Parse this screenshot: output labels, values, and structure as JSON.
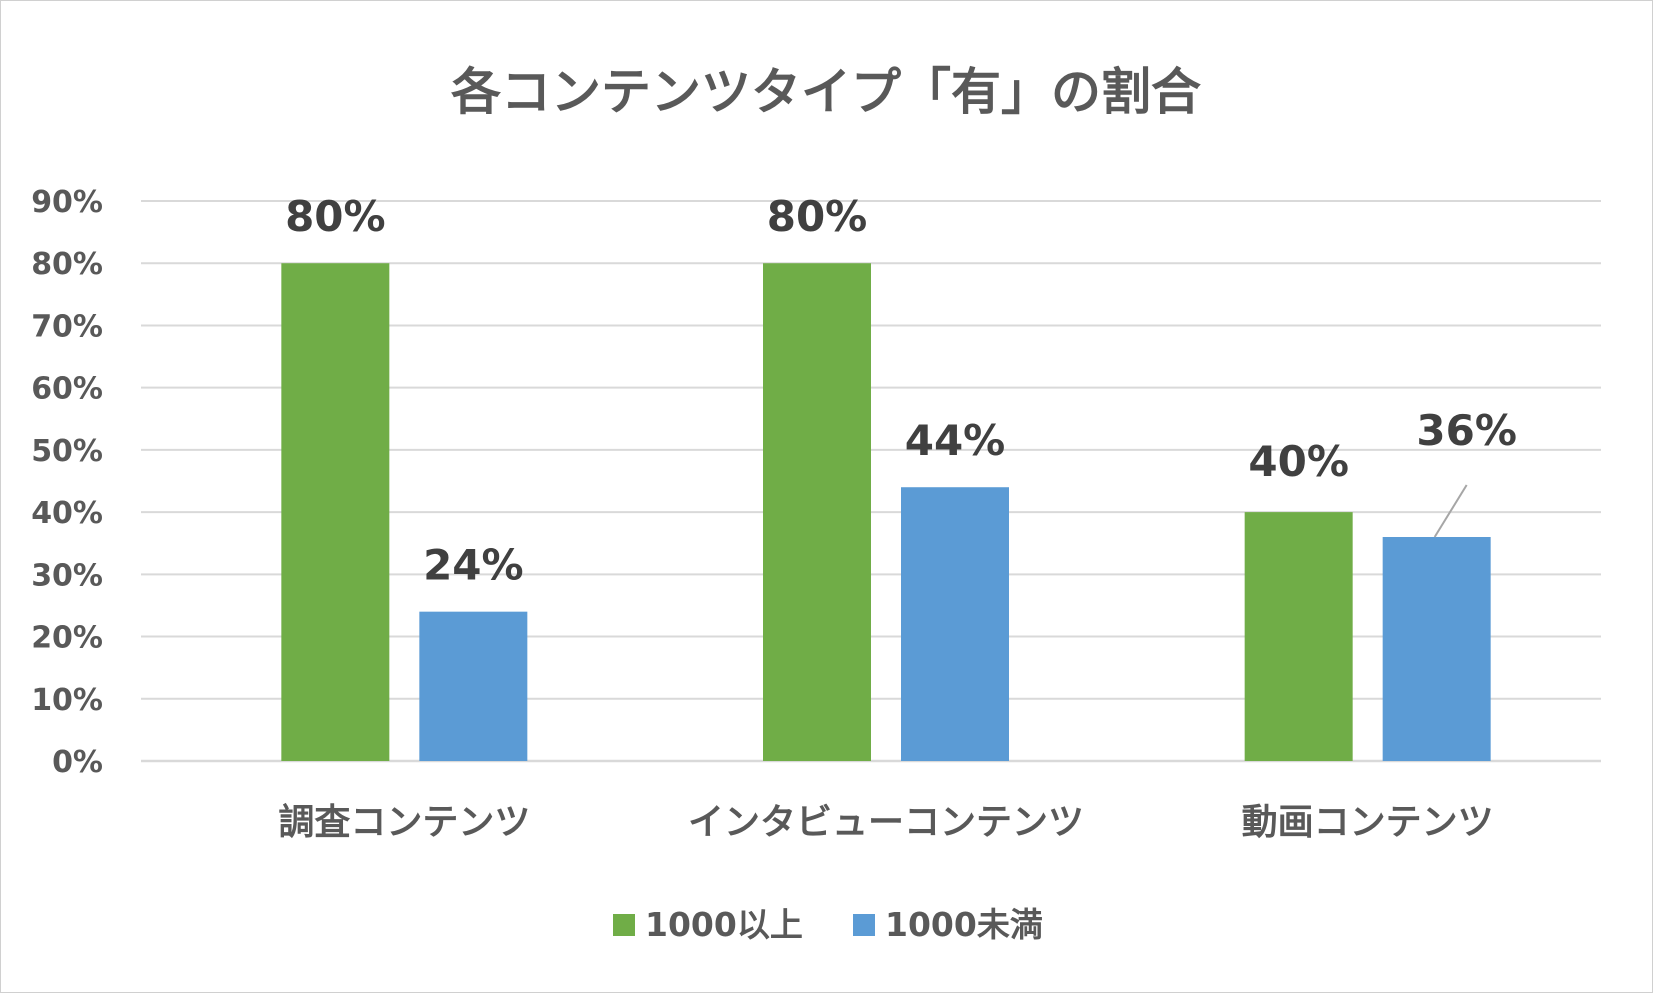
{
  "chart_data": {
    "type": "bar",
    "title": "各コンテンツタイプ「有」の割合",
    "categories": [
      "調査コンテンツ",
      "インタビューコンテンツ",
      "動画コンテンツ"
    ],
    "series": [
      {
        "name": "1000以上",
        "color": "#70ad47",
        "values": [
          80,
          80,
          40
        ],
        "labels": [
          "80%",
          "80%",
          "40%"
        ]
      },
      {
        "name": "1000未満",
        "color": "#5b9bd5",
        "values": [
          24,
          44,
          36
        ],
        "labels": [
          "24%",
          "44%",
          "36%"
        ]
      }
    ],
    "ylim": [
      0,
      90
    ],
    "yticks": [
      "0%",
      "10%",
      "20%",
      "30%",
      "40%",
      "50%",
      "60%",
      "70%",
      "80%",
      "90%"
    ],
    "grid": true,
    "legend_position": "bottom",
    "colors": {
      "text": "#595959",
      "datalabel": "#404040",
      "grid": "#d9d9d9",
      "leader": "#a6a6a6"
    }
  }
}
